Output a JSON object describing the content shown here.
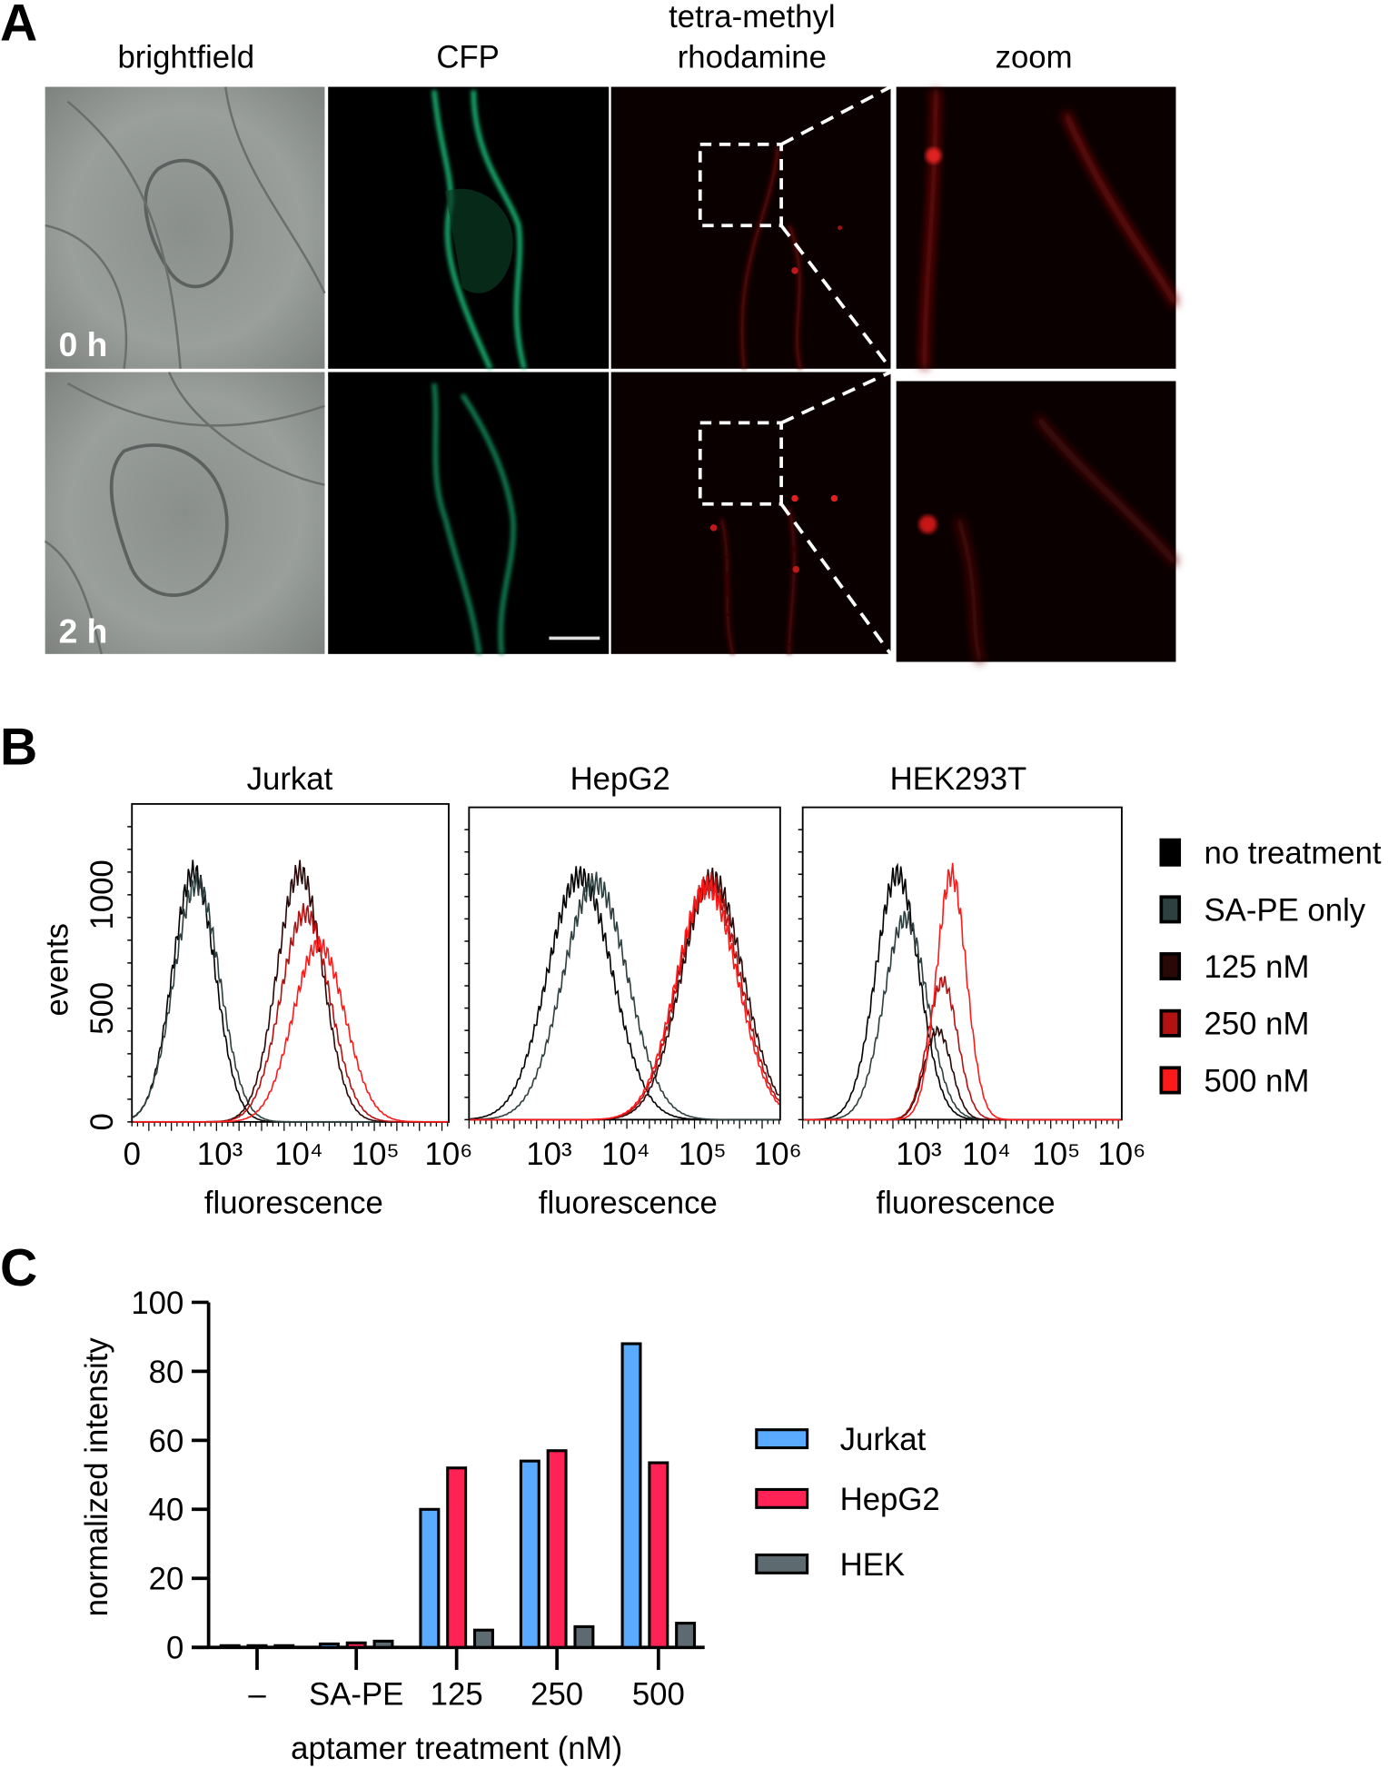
{
  "panel_a": {
    "letter": "A",
    "columns": [
      "brightfield",
      "CFP",
      "tetra-methyl",
      "rhodamine",
      "zoom"
    ],
    "rows": [
      "0 h",
      "2 h"
    ]
  },
  "panel_b": {
    "letter": "B"
  },
  "panel_c": {
    "letter": "C"
  },
  "colors": {
    "no_treatment": "#000000",
    "sa_pe": "#2f4040",
    "nm125": "#2a0808",
    "nm250": "#b31212",
    "nm500": "#ff1a1a",
    "jurkat": "#5aabff",
    "hepg2": "#ff2255",
    "hek": "#5d6a70"
  },
  "chart_data": [
    {
      "type": "line",
      "subtype": "histogram-overlay",
      "title": "Jurkat",
      "xlabel": "fluorescence",
      "ylabel": "events",
      "xscale": "log10 (biexponential)",
      "xlim": [
        1.85,
        6
      ],
      "ylim": [
        0,
        1400
      ],
      "xtick_labels": [
        "0",
        "10³",
        "10⁴",
        "10⁵",
        "10⁶"
      ],
      "ytick_labels": [
        "0",
        "500",
        "1000"
      ],
      "series": [
        {
          "name": "no treatment",
          "peak_log10": 2.66,
          "peak_events": 1100,
          "sigma": 0.28
        },
        {
          "name": "SA-PE only",
          "peak_log10": 2.7,
          "peak_events": 1050,
          "sigma": 0.3
        },
        {
          "name": "125 nM",
          "peak_log10": 4.05,
          "peak_events": 1100,
          "sigma": 0.3
        },
        {
          "name": "250 nM",
          "peak_log10": 4.12,
          "peak_events": 920,
          "sigma": 0.32
        },
        {
          "name": "500 nM",
          "peak_log10": 4.3,
          "peak_events": 780,
          "sigma": 0.34
        }
      ]
    },
    {
      "type": "line",
      "subtype": "histogram-overlay",
      "title": "HepG2",
      "xlabel": "fluorescence",
      "ylabel": "events",
      "xscale": "log10 (biexponential)",
      "xlim": [
        1.96,
        6
      ],
      "ylim": [
        0,
        1400
      ],
      "xtick_labels": [
        "10³",
        "10⁴",
        "10⁵",
        "10⁶"
      ],
      "series": [
        {
          "name": "no treatment",
          "peak_log10": 3.4,
          "peak_events": 1090,
          "sigma": 0.42
        },
        {
          "name": "SA-PE only",
          "peak_log10": 3.6,
          "peak_events": 1060,
          "sigma": 0.42
        },
        {
          "name": "125 nM",
          "peak_log10": 5.12,
          "peak_events": 1080,
          "sigma": 0.4
        },
        {
          "name": "250 nM",
          "peak_log10": 5.08,
          "peak_events": 1060,
          "sigma": 0.4
        },
        {
          "name": "500 nM",
          "peak_log10": 5.05,
          "peak_events": 1040,
          "sigma": 0.4
        }
      ]
    },
    {
      "type": "line",
      "subtype": "histogram-overlay",
      "title": "HEK293T",
      "xlabel": "fluorescence",
      "ylabel": "events",
      "xscale": "log10 (biexponential)",
      "xlim": [
        1.28,
        6
      ],
      "ylim": [
        0,
        1400
      ],
      "xtick_labels": [
        "10³",
        "10⁴",
        "10⁵",
        "10⁶"
      ],
      "series": [
        {
          "name": "no treatment",
          "peak_log10": 2.68,
          "peak_events": 1100,
          "sigma": 0.32
        },
        {
          "name": "SA-PE only",
          "peak_log10": 2.8,
          "peak_events": 900,
          "sigma": 0.32
        },
        {
          "name": "125 nM",
          "peak_log10": 3.28,
          "peak_events": 400,
          "sigma": 0.2
        },
        {
          "name": "250 nM",
          "peak_log10": 3.35,
          "peak_events": 620,
          "sigma": 0.22
        },
        {
          "name": "500 nM",
          "peak_log10": 3.48,
          "peak_events": 1100,
          "sigma": 0.22
        }
      ],
      "legend": [
        "no treatment",
        "SA-PE only",
        "125 nM",
        "250 nM",
        "500 nM"
      ],
      "legend_position": "right"
    },
    {
      "type": "bar",
      "title": "",
      "xlabel": "aptamer treatment (nM)",
      "ylabel": "normalized intensity",
      "ylim": [
        0,
        100
      ],
      "ytick_labels": [
        "0",
        "20",
        "40",
        "60",
        "80",
        "100"
      ],
      "categories": [
        "–",
        "SA-PE",
        "125",
        "250",
        "500"
      ],
      "series": [
        {
          "name": "Jurkat",
          "values": [
            0.5,
            1.0,
            40,
            54,
            88
          ]
        },
        {
          "name": "HepG2",
          "values": [
            0.5,
            1.3,
            52,
            57,
            53.5
          ]
        },
        {
          "name": "HEK",
          "values": [
            0.5,
            1.8,
            5,
            6,
            7
          ]
        }
      ],
      "legend_position": "right"
    }
  ]
}
